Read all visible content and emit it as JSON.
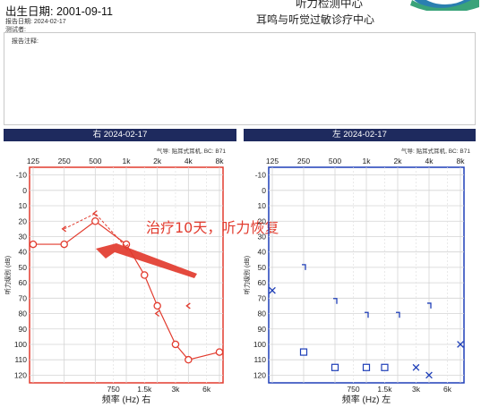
{
  "patient": {
    "birth_date": "出生日期: 2001-09-11",
    "report_date": "报告日期: 2024-02-17",
    "examiner": "测试者:"
  },
  "header": {
    "line1": "听力检测中心",
    "line2": "耳鸣与听觉过敏诊疗中心"
  },
  "notes": {
    "label": "报告注释:"
  },
  "colors": {
    "right_ear": "#e23b2e",
    "left_ear": "#1f3fb8",
    "header_bar": "#1e2a5e"
  },
  "audiogram": {
    "top_freq_labels": [
      "125",
      "250",
      "500",
      "1k",
      "2k",
      "4k",
      "8k"
    ],
    "bottom_freq_labels": [
      "750",
      "1.5k",
      "3k",
      "6k"
    ],
    "y_ticks": [
      "-10",
      "0",
      "10",
      "20",
      "30",
      "40",
      "50",
      "60",
      "70",
      "80",
      "90",
      "100",
      "110",
      "120"
    ],
    "y_axis_label": "听力级别 (dB)",
    "device_text": "气导: 贴耳式耳机, BC: B71"
  },
  "right_ear": {
    "title": "右 2024-02-17",
    "x_label": "频率 (Hz) 右",
    "annotation": "治疗10天，听力恢复",
    "air_before": [
      {
        "freq": 125,
        "db": 35
      },
      {
        "freq": 250,
        "db": 35
      },
      {
        "freq": 500,
        "db": 20
      },
      {
        "freq": 1000,
        "db": 35
      },
      {
        "freq": 1500,
        "db": 55
      },
      {
        "freq": 2000,
        "db": 75
      },
      {
        "freq": 3000,
        "db": 100
      },
      {
        "freq": 4000,
        "db": 110
      },
      {
        "freq": 8000,
        "db": 105
      }
    ],
    "air_after": [
      {
        "freq": 250,
        "db": 25
      },
      {
        "freq": 500,
        "db": 15
      },
      {
        "freq": 1000,
        "db": 37
      },
      {
        "freq": 2000,
        "db": 80
      },
      {
        "freq": 4000,
        "db": 75
      }
    ]
  },
  "left_ear": {
    "title": "左 2024-02-17",
    "x_label": "频率 (Hz) 左",
    "air": [
      {
        "freq": 125,
        "db": 65
      },
      {
        "freq": 4000,
        "db": 120
      },
      {
        "freq": 3000,
        "db": 115
      },
      {
        "freq": 8000,
        "db": 100
      }
    ],
    "masked_air": [
      {
        "freq": 250,
        "db": 105
      },
      {
        "freq": 500,
        "db": 115
      },
      {
        "freq": 1000,
        "db": 115
      },
      {
        "freq": 1500,
        "db": 115
      }
    ],
    "bone": [
      {
        "freq": 250,
        "db": 50
      },
      {
        "freq": 500,
        "db": 72
      },
      {
        "freq": 1000,
        "db": 81
      },
      {
        "freq": 2000,
        "db": 81
      },
      {
        "freq": 4000,
        "db": 75
      }
    ]
  },
  "chart_data": [
    {
      "type": "scatter",
      "title": "右 2024-02-17",
      "xlabel": "频率 (Hz) 右",
      "ylabel": "听力级别 (dB)",
      "x_scale": "log",
      "ylim": [
        -15,
        125
      ],
      "y_inverted": true,
      "series": [
        {
          "x": [
            125,
            250,
            500,
            1000,
            1500,
            2000,
            3000,
            4000,
            8000
          ],
          "y": [
            35,
            35,
            20,
            35,
            55,
            75,
            100,
            110,
            105
          ]
        },
        {
          "x": [
            250,
            500,
            1000,
            2000,
            4000
          ],
          "y": [
            25,
            15,
            37,
            80,
            75
          ]
        }
      ]
    },
    {
      "type": "scatter",
      "title": "左 2024-02-17",
      "xlabel": "频率 (Hz) 左",
      "ylabel": "听力级别 (dB)",
      "x_scale": "log",
      "ylim": [
        -15,
        125
      ],
      "y_inverted": true,
      "series": [
        {
          "x": [
            125,
            3000,
            4000,
            8000
          ],
          "y": [
            65,
            115,
            120,
            100
          ]
        },
        {
          "x": [
            250,
            500,
            1000,
            1500
          ],
          "y": [
            105,
            115,
            115,
            115
          ]
        },
        {
          "x": [
            250,
            500,
            1000,
            2000,
            4000
          ],
          "y": [
            50,
            72,
            81,
            81,
            75
          ]
        }
      ]
    }
  ]
}
